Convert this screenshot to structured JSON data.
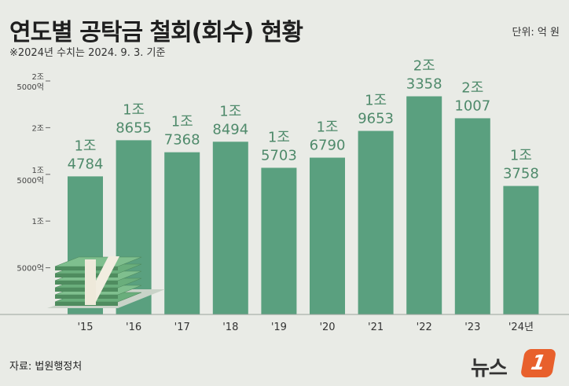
{
  "header": {
    "title": "연도별 공탁금 철회(회수) 현황",
    "subtitle": "※2024년 수치는 2024. 9. 3. 기준",
    "unit": "단위: 억 원"
  },
  "footer": {
    "source": "자료: 법원행정처",
    "logo_text": "뉴스",
    "logo_badge": "1"
  },
  "colors": {
    "background": "#e9ebe6",
    "bar": "#5aa07f",
    "bar_label": "#4f8a6b",
    "axis": "#9aa39c"
  },
  "icons": [
    "money-stack-icon"
  ],
  "chart_data": {
    "type": "bar",
    "categories": [
      "'15",
      "'16",
      "'17",
      "'18",
      "'19",
      "'20",
      "'21",
      "'22",
      "'23",
      "'24년"
    ],
    "values": [
      14784,
      18655,
      17368,
      18494,
      15703,
      16790,
      19653,
      23358,
      21007,
      13758
    ],
    "value_labels": [
      [
        "1조",
        "4784"
      ],
      [
        "1조",
        "8655"
      ],
      [
        "1조",
        "7368"
      ],
      [
        "1조",
        "8494"
      ],
      [
        "1조",
        "5703"
      ],
      [
        "1조",
        "6790"
      ],
      [
        "1조",
        "9653"
      ],
      [
        "2조",
        "3358"
      ],
      [
        "2조",
        "1007"
      ],
      [
        "1조",
        "3758"
      ]
    ],
    "yticks": [
      {
        "value": 5000,
        "label": [
          "5000억"
        ]
      },
      {
        "value": 10000,
        "label": [
          "1조"
        ]
      },
      {
        "value": 15000,
        "label": [
          "1조",
          "5000억"
        ]
      },
      {
        "value": 20000,
        "label": [
          "2조"
        ]
      },
      {
        "value": 25000,
        "label": [
          "2조",
          "5000억"
        ]
      }
    ],
    "ylim": [
      0,
      25000
    ],
    "grid": false,
    "title": "",
    "xlabel": "",
    "ylabel": ""
  }
}
